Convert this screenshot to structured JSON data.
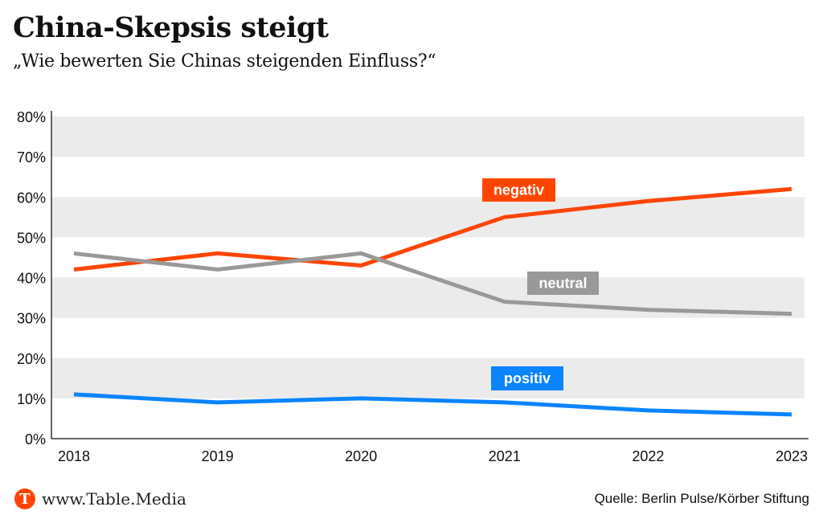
{
  "header": {
    "title": "China-Skepsis steigt",
    "subtitle": "„Wie bewerten Sie Chinas steigenden Einfluss?“"
  },
  "footer": {
    "logo_letter": "T",
    "brand": "www.Table.Media",
    "source": "Quelle: Berlin Pulse/Körber Stiftung"
  },
  "chart_data": {
    "type": "line",
    "title": "China-Skepsis steigt",
    "subtitle": "„Wie bewerten Sie Chinas steigenden Einfluss?“",
    "xlabel": "",
    "ylabel": "",
    "x": [
      "2018",
      "2019",
      "2020",
      "2021",
      "2022",
      "2023"
    ],
    "ylim": [
      0,
      80
    ],
    "yticks": [
      0,
      10,
      20,
      30,
      40,
      50,
      60,
      70,
      80
    ],
    "ytick_labels": [
      "0%",
      "10%",
      "20%",
      "30%",
      "40%",
      "50%",
      "60%",
      "70%",
      "80%"
    ],
    "grid": "alternating horizontal bands",
    "series": [
      {
        "name": "negativ",
        "color": "#ff4500",
        "values": [
          42,
          46,
          43,
          55,
          59,
          62
        ]
      },
      {
        "name": "neutral",
        "color": "#999999",
        "values": [
          46,
          42,
          46,
          34,
          32,
          31
        ]
      },
      {
        "name": "positiv",
        "color": "#0a84ff",
        "values": [
          11,
          9,
          10,
          9,
          7,
          6
        ]
      }
    ],
    "legend": "inline labels next to lines"
  }
}
